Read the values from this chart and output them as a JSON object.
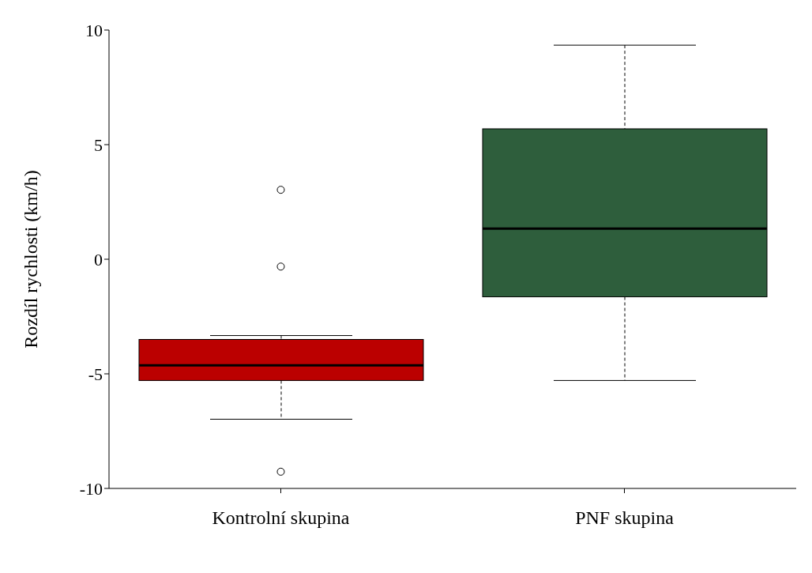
{
  "chart_data": {
    "type": "box",
    "ylabel": "Rozdíl rychlosti (km/h)",
    "categories": [
      "Kontrolní skupina",
      "PNF skupina"
    ],
    "colors": [
      "#bb0000",
      "#2e5e3c"
    ],
    "boxes": [
      {
        "low": -6.98,
        "q1": -5.29,
        "median": -4.63,
        "q3": -3.5,
        "high": -3.33,
        "outliers": [
          3.03,
          -0.32,
          -9.27
        ]
      },
      {
        "low": -5.29,
        "q1": -1.64,
        "median": 1.34,
        "q3": 5.69,
        "high": 9.34
      }
    ],
    "ylim": [
      -10,
      10
    ],
    "yticks": [
      -10,
      -5,
      0,
      5,
      10
    ]
  }
}
